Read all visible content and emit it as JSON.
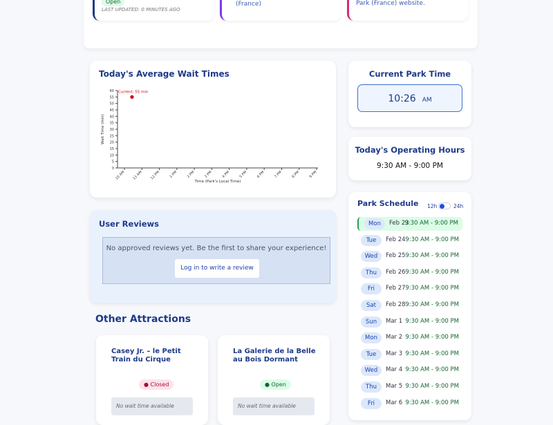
{
  "top_cards": [
    {
      "badge": "Open",
      "updated": "LAST UPDATED: 0 MINUTES AGO"
    },
    {
      "text": "(France)"
    },
    {
      "text": "Park (France) website."
    }
  ],
  "wait_chart": {
    "title": "Today's Average Wait Times"
  },
  "chart_data": {
    "type": "scatter",
    "xlabel": "Time (Park's Local Time)",
    "ylabel": "Wait Time (min)",
    "ylim": [
      0,
      60
    ],
    "yticks": [
      0,
      5,
      10,
      15,
      20,
      25,
      30,
      35,
      40,
      45,
      50,
      55,
      60
    ],
    "xticks": [
      "10 AM",
      "11 AM",
      "12 PM",
      "1 PM",
      "2 PM",
      "3 PM",
      "4 PM",
      "5 PM",
      "6 PM",
      "7 PM",
      "8 PM",
      "9 PM"
    ],
    "points": [
      {
        "x": "10:26 AM",
        "y": 55,
        "label": "Current: 55 min"
      }
    ],
    "point_color": "#cc0000"
  },
  "park_time": {
    "title": "Current Park Time",
    "time": "10:26",
    "ampm": "AM"
  },
  "hours": {
    "title": "Today's Operating Hours",
    "value": "9:30 AM - 9:00 PM"
  },
  "reviews": {
    "title": "User Reviews",
    "empty": "No approved reviews yet. Be the first to share your experience!",
    "login": "Log in to write a review"
  },
  "schedule": {
    "title": "Park Schedule",
    "toggle_12": "12h",
    "toggle_24": "24h",
    "rows": [
      {
        "day": "Mon",
        "date": "Feb 23",
        "hours": "9:30 AM - 9:00 PM"
      },
      {
        "day": "Tue",
        "date": "Feb 24",
        "hours": "9:30 AM - 9:00 PM"
      },
      {
        "day": "Wed",
        "date": "Feb 25",
        "hours": "9:30 AM - 9:00 PM"
      },
      {
        "day": "Thu",
        "date": "Feb 26",
        "hours": "9:30 AM - 9:00 PM"
      },
      {
        "day": "Fri",
        "date": "Feb 27",
        "hours": "9:30 AM - 9:00 PM"
      },
      {
        "day": "Sat",
        "date": "Feb 28",
        "hours": "9:30 AM - 9:00 PM"
      },
      {
        "day": "Sun",
        "date": "Mar 1",
        "hours": "9:30 AM - 9:00 PM"
      },
      {
        "day": "Mon",
        "date": "Mar 2",
        "hours": "9:30 AM - 9:00 PM"
      },
      {
        "day": "Tue",
        "date": "Mar 3",
        "hours": "9:30 AM - 9:00 PM"
      },
      {
        "day": "Wed",
        "date": "Mar 4",
        "hours": "9:30 AM - 9:00 PM"
      },
      {
        "day": "Thu",
        "date": "Mar 5",
        "hours": "9:30 AM - 9:00 PM"
      },
      {
        "day": "Fri",
        "date": "Mar 6",
        "hours": "9:30 AM - 9:00 PM"
      }
    ]
  },
  "other": {
    "title": "Other Attractions",
    "items": [
      {
        "name": "Casey Jr. – le Petit Train du Cirque",
        "status": "Closed",
        "wait": "No wait time available"
      },
      {
        "name": "La Galerie de la Belle au Bois Dormant",
        "status": "Open",
        "wait": "No wait time available"
      }
    ]
  }
}
